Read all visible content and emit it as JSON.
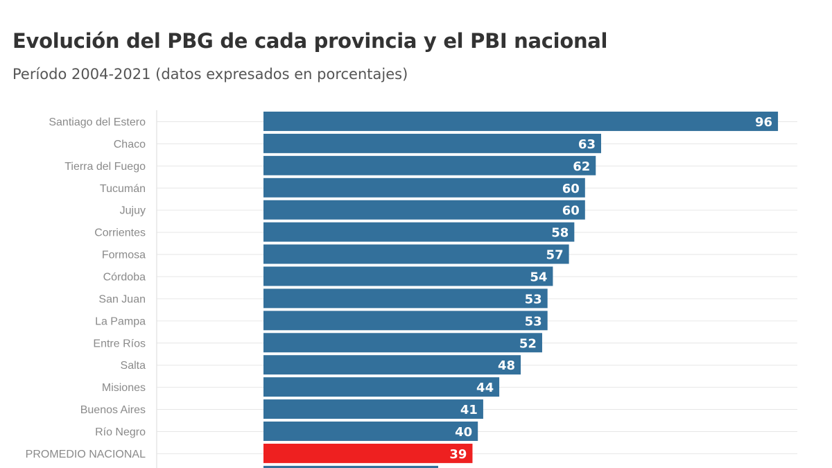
{
  "title": "Evolución del PBG de cada provincia y el PBI nacional",
  "subtitle": "Período 2004-2021 (datos expresados en porcentajes)",
  "colors": {
    "bar": "#33709b",
    "highlight": "#ee2020",
    "grid": "#e6e6e6",
    "axis": "#d9d9d9"
  },
  "chart_data": {
    "type": "bar",
    "orientation": "horizontal",
    "title": "Evolución del PBG de cada provincia y el PBI nacional",
    "subtitle": "Período 2004-2021 (datos expresados en porcentajes)",
    "categories": [
      "Santiago del Estero",
      "Chaco",
      "Tierra del Fuego",
      "Tucumán",
      "Jujuy",
      "Corrientes",
      "Formosa",
      "Córdoba",
      "San Juan",
      "La Pampa",
      "Entre Ríos",
      "Salta",
      "Misiones",
      "Buenos Aires",
      "Río Negro",
      "PROMEDIO NACIONAL"
    ],
    "values": [
      96,
      63,
      62,
      60,
      60,
      58,
      57,
      54,
      53,
      53,
      52,
      48,
      44,
      41,
      40,
      39
    ],
    "highlight_category": "PROMEDIO NACIONAL",
    "xlim": [
      0,
      100
    ],
    "grid": true,
    "data_labels": true
  }
}
